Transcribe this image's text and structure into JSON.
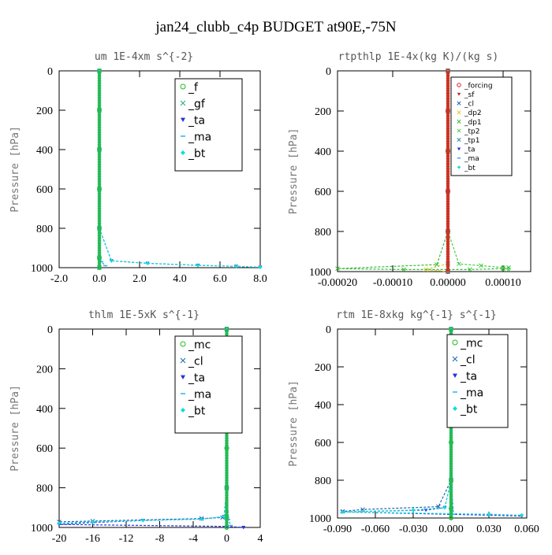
{
  "page_title": "jan24_clubb_c4p  BUDGET at90E,-75N",
  "series_colors": {
    "_f": "#22bb22",
    "_gf": "#22aa88",
    "_ta": "#2233dd",
    "_ma": "#22aaee",
    "_bt": "#11dddd",
    "_mc": "#22bb22",
    "_cl": "#2266aa",
    "_forcing": "#cc2222",
    "_sf": "#cc2222",
    "_dp2": "#ddcc22",
    "_dp1": "#33bb33",
    "_tp2": "#44cc44",
    "_tp1": "#2288aa"
  },
  "chart_data": [
    {
      "type": "line",
      "title": "um  1E-4xm s^{-2}",
      "ylabel": "Pressure [hPa]",
      "xlim": [
        -2,
        8
      ],
      "ylim": [
        1000,
        0
      ],
      "xticks": [
        "-2.0",
        "0.0",
        "2.0",
        "4.0",
        "6.0",
        "8.0"
      ],
      "yticks": [
        "0",
        "200",
        "400",
        "600",
        "800",
        "1000"
      ],
      "legend": "top-right",
      "series": [
        {
          "name": "_f",
          "x": [
            0,
            0,
            0,
            0,
            0,
            0,
            0
          ],
          "y": [
            0,
            200,
            400,
            600,
            800,
            950,
            1000
          ]
        },
        {
          "name": "_gf",
          "x": [
            0,
            0,
            0,
            0,
            0,
            0,
            0
          ],
          "y": [
            0,
            200,
            400,
            600,
            800,
            950,
            1000
          ]
        },
        {
          "name": "_ta",
          "x": [
            0,
            0,
            0,
            0,
            0.6,
            2.4,
            4.9,
            6.8,
            8.0
          ],
          "y": [
            0,
            200,
            400,
            800,
            965,
            978,
            988,
            993,
            998
          ]
        },
        {
          "name": "_ma",
          "x": [
            0,
            0,
            0,
            0,
            0.1,
            0.3
          ],
          "y": [
            0,
            400,
            800,
            950,
            970,
            990
          ]
        },
        {
          "name": "_bt",
          "x": [
            0,
            0,
            0,
            0,
            0.6,
            2.4,
            4.9,
            6.8,
            8.0
          ],
          "y": [
            0,
            200,
            400,
            800,
            965,
            978,
            988,
            993,
            998
          ]
        }
      ]
    },
    {
      "type": "line",
      "title": "rtpthlp  1E-4x(kg K)/(kg s)",
      "ylabel": "Pressure [hPa]",
      "xlim": [
        -0.0002,
        0.00015
      ],
      "ylim": [
        1000,
        0
      ],
      "xticks": [
        "-0.00020",
        "-0.00010",
        "0.00000",
        "0.00010"
      ],
      "yticks": [
        "0",
        "200",
        "400",
        "600",
        "800",
        "1000"
      ],
      "legend": "top-right",
      "series": [
        {
          "name": "_forcing",
          "x": [
            0,
            0,
            0,
            0,
            0,
            0
          ],
          "y": [
            0,
            200,
            400,
            600,
            800,
            1000
          ]
        },
        {
          "name": "_sf",
          "x": [
            0,
            0,
            0,
            0,
            0,
            0
          ],
          "y": [
            0,
            200,
            400,
            600,
            800,
            1000
          ]
        },
        {
          "name": "_cl",
          "x": [
            0,
            0,
            0,
            0,
            0,
            0
          ],
          "y": [
            0,
            200,
            400,
            600,
            800,
            1000
          ]
        },
        {
          "name": "_dp2",
          "x": [
            0,
            0,
            0,
            0,
            -4e-05,
            0
          ],
          "y": [
            0,
            400,
            800,
            960,
            990,
            1000
          ]
        },
        {
          "name": "_dp1",
          "x": [
            0,
            0,
            0,
            -2e-05,
            -0.0002,
            -8e-05,
            4e-05,
            0.0001,
            0.00011
          ],
          "y": [
            0,
            400,
            800,
            965,
            985,
            990,
            990,
            985,
            980
          ]
        },
        {
          "name": "_tp2",
          "x": [
            0,
            0,
            2e-05,
            6e-05,
            0.0001,
            0.00011
          ],
          "y": [
            0,
            800,
            962,
            970,
            980,
            990
          ]
        },
        {
          "name": "_tp1",
          "x": [
            0,
            0,
            0,
            0
          ],
          "y": [
            0,
            800,
            960,
            1000
          ]
        },
        {
          "name": "_ta",
          "x": [
            0,
            0,
            0,
            0
          ],
          "y": [
            0,
            800,
            960,
            1000
          ]
        },
        {
          "name": "_ma",
          "x": [
            0,
            0,
            0,
            0
          ],
          "y": [
            0,
            800,
            960,
            1000
          ]
        },
        {
          "name": "_bt",
          "x": [
            0,
            0,
            0,
            0
          ],
          "y": [
            0,
            800,
            960,
            1000
          ]
        }
      ]
    },
    {
      "type": "line",
      "title": "thlm  1E-5xK s^{-1}",
      "ylabel": "Pressure [hPa]",
      "xlim": [
        -20,
        4
      ],
      "ylim": [
        1000,
        0
      ],
      "xticks": [
        "-20",
        "-16",
        "-12",
        "-8",
        "-4",
        "0",
        "4"
      ],
      "yticks": [
        "0",
        "200",
        "400",
        "600",
        "800",
        "1000"
      ],
      "legend": "top-right",
      "series": [
        {
          "name": "_mc",
          "x": [
            0,
            0,
            0,
            0,
            0,
            0,
            0
          ],
          "y": [
            0,
            200,
            400,
            600,
            800,
            950,
            1000
          ]
        },
        {
          "name": "_cl",
          "x": [
            0,
            0,
            0,
            0,
            -0.5,
            -3,
            -16,
            -20
          ],
          "y": [
            0,
            400,
            800,
            930,
            950,
            955,
            968,
            972
          ]
        },
        {
          "name": "_ta",
          "x": [
            0,
            0,
            0,
            -0.3,
            -3,
            -10,
            -16,
            -20,
            0,
            2
          ],
          "y": [
            0,
            400,
            800,
            945,
            958,
            965,
            975,
            985,
            995,
            1000
          ]
        },
        {
          "name": "_ma",
          "x": [
            0,
            0,
            0,
            0.2,
            0.5
          ],
          "y": [
            0,
            400,
            800,
            960,
            990
          ]
        },
        {
          "name": "_bt",
          "x": [
            0,
            0,
            0,
            -0.3,
            -3,
            -10,
            -16,
            -20
          ],
          "y": [
            0,
            400,
            800,
            945,
            958,
            965,
            972,
            978
          ]
        }
      ]
    },
    {
      "type": "line",
      "title": "rtm  1E-8xkg kg^{-1} s^{-1}",
      "ylabel": "Pressure [hPa]",
      "xlim": [
        -0.09,
        0.06
      ],
      "ylim": [
        1000,
        0
      ],
      "xticks": [
        "-0.090",
        "-0.060",
        "-0.030",
        "0.000",
        "0.030",
        "0.060"
      ],
      "yticks": [
        "0",
        "200",
        "400",
        "600",
        "800",
        "1000"
      ],
      "legend": "top-right",
      "series": [
        {
          "name": "_mc",
          "x": [
            0,
            0,
            0,
            0,
            0,
            0,
            0
          ],
          "y": [
            0,
            200,
            400,
            600,
            800,
            950,
            1000
          ]
        },
        {
          "name": "_cl",
          "x": [
            0,
            0,
            0,
            -0.01,
            -0.07,
            -0.086
          ],
          "y": [
            0,
            400,
            800,
            940,
            955,
            965
          ]
        },
        {
          "name": "_ta",
          "x": [
            0,
            0,
            0,
            -0.005,
            -0.02,
            -0.086,
            0.03,
            0.056
          ],
          "y": [
            0,
            400,
            800,
            945,
            958,
            968,
            985,
            990
          ]
        },
        {
          "name": "_ma",
          "x": [
            0,
            0,
            0,
            0.002
          ],
          "y": [
            0,
            400,
            800,
            980
          ]
        },
        {
          "name": "_bt",
          "x": [
            0,
            0,
            0,
            -0.005,
            -0.03,
            -0.086,
            0.03,
            0.056
          ],
          "y": [
            0,
            400,
            800,
            945,
            958,
            968,
            980,
            985
          ]
        }
      ]
    }
  ]
}
